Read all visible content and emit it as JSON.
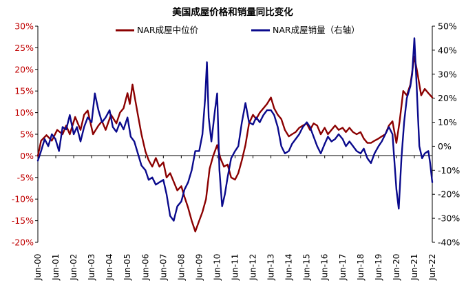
{
  "chart_data": {
    "type": "line",
    "title": "美国成屋价格和销量同比变化",
    "legend_position": "top",
    "grid": false,
    "y_left": {
      "min": -20,
      "max": 30,
      "step": 5,
      "suffix": "%",
      "color": "#C00000"
    },
    "y_right": {
      "min": -40,
      "max": 50,
      "step": 10,
      "suffix": "%",
      "color": "#000000"
    },
    "x_ticks": [
      "Jun-00",
      "Jun-01",
      "Jun-02",
      "Jun-03",
      "Jun-04",
      "Jun-05",
      "Jun-06",
      "Jun-07",
      "Jun-08",
      "Jun-09",
      "Jun-10",
      "Jun-11",
      "Jun-12",
      "Jun-13",
      "Jun-14",
      "Jun-15",
      "Jun-16",
      "Jun-17",
      "Jun-18",
      "Jun-19",
      "Jun-20",
      "Jun-21",
      "Jun-22"
    ],
    "x_range": [
      2000.42,
      2022.42
    ],
    "series": [
      {
        "name": "NAR成屋中位价",
        "axis": "left",
        "color": "#8B0000",
        "points": [
          [
            2000.42,
            0
          ],
          [
            2000.6,
            3.5
          ],
          [
            2000.9,
            4.8
          ],
          [
            2001.2,
            3.5
          ],
          [
            2001.5,
            6
          ],
          [
            2001.8,
            5
          ],
          [
            2002.0,
            7
          ],
          [
            2002.2,
            5
          ],
          [
            2002.5,
            9
          ],
          [
            2002.8,
            6
          ],
          [
            2003.0,
            9.5
          ],
          [
            2003.2,
            10.5
          ],
          [
            2003.5,
            5
          ],
          [
            2003.8,
            7
          ],
          [
            2004.0,
            8
          ],
          [
            2004.2,
            6
          ],
          [
            2004.5,
            9.5
          ],
          [
            2004.8,
            7.5
          ],
          [
            2005.0,
            10
          ],
          [
            2005.2,
            11
          ],
          [
            2005.42,
            14.5
          ],
          [
            2005.55,
            12
          ],
          [
            2005.7,
            16.5
          ],
          [
            2005.85,
            13
          ],
          [
            2006.0,
            9.5
          ],
          [
            2006.2,
            5
          ],
          [
            2006.42,
            1
          ],
          [
            2006.6,
            -1
          ],
          [
            2006.8,
            -2.5
          ],
          [
            2007.0,
            -0.5
          ],
          [
            2007.2,
            -2.5
          ],
          [
            2007.42,
            -1.5
          ],
          [
            2007.6,
            -5
          ],
          [
            2007.8,
            -4
          ],
          [
            2008.0,
            -6
          ],
          [
            2008.2,
            -8
          ],
          [
            2008.42,
            -7
          ],
          [
            2008.6,
            -9.5
          ],
          [
            2008.8,
            -12
          ],
          [
            2009.0,
            -15
          ],
          [
            2009.2,
            -17.5
          ],
          [
            2009.42,
            -15
          ],
          [
            2009.6,
            -13
          ],
          [
            2009.8,
            -10
          ],
          [
            2010.0,
            -3
          ],
          [
            2010.2,
            0
          ],
          [
            2010.42,
            2.5
          ],
          [
            2010.6,
            -0.5
          ],
          [
            2010.8,
            -2.5
          ],
          [
            2011.0,
            -2
          ],
          [
            2011.2,
            -5
          ],
          [
            2011.42,
            -5.5
          ],
          [
            2011.6,
            -4
          ],
          [
            2011.8,
            -1
          ],
          [
            2012.0,
            2.5
          ],
          [
            2012.2,
            7.5
          ],
          [
            2012.42,
            9.5
          ],
          [
            2012.6,
            8.5
          ],
          [
            2012.8,
            10
          ],
          [
            2013.0,
            11
          ],
          [
            2013.2,
            12
          ],
          [
            2013.42,
            13.5
          ],
          [
            2013.6,
            11
          ],
          [
            2013.8,
            9.5
          ],
          [
            2014.0,
            8.5
          ],
          [
            2014.2,
            6
          ],
          [
            2014.42,
            4.5
          ],
          [
            2014.6,
            5
          ],
          [
            2014.8,
            5.5
          ],
          [
            2015.0,
            6.5
          ],
          [
            2015.2,
            7
          ],
          [
            2015.42,
            7.5
          ],
          [
            2015.6,
            6
          ],
          [
            2015.8,
            7.5
          ],
          [
            2016.0,
            7
          ],
          [
            2016.2,
            5
          ],
          [
            2016.42,
            6.5
          ],
          [
            2016.6,
            5
          ],
          [
            2016.8,
            6
          ],
          [
            2017.0,
            7
          ],
          [
            2017.2,
            6
          ],
          [
            2017.42,
            6.5
          ],
          [
            2017.6,
            5.5
          ],
          [
            2017.8,
            6.5
          ],
          [
            2018.0,
            5.5
          ],
          [
            2018.2,
            5
          ],
          [
            2018.42,
            5.5
          ],
          [
            2018.6,
            4
          ],
          [
            2018.8,
            3
          ],
          [
            2019.0,
            3
          ],
          [
            2019.2,
            3.5
          ],
          [
            2019.42,
            4
          ],
          [
            2019.6,
            4.5
          ],
          [
            2019.8,
            5
          ],
          [
            2020.0,
            7
          ],
          [
            2020.2,
            8
          ],
          [
            2020.42,
            3
          ],
          [
            2020.6,
            8
          ],
          [
            2020.8,
            15
          ],
          [
            2021.0,
            14
          ],
          [
            2021.2,
            16.5
          ],
          [
            2021.42,
            23
          ],
          [
            2021.6,
            19
          ],
          [
            2021.8,
            14
          ],
          [
            2022.0,
            15.5
          ],
          [
            2022.2,
            14.5
          ],
          [
            2022.42,
            13.5
          ]
        ]
      },
      {
        "name": "NAR成屋销量（右轴）",
        "axis": "right",
        "color": "#0A0A8C",
        "points": [
          [
            2000.42,
            -6
          ],
          [
            2000.6,
            -2
          ],
          [
            2000.8,
            3
          ],
          [
            2001.0,
            0
          ],
          [
            2001.2,
            5
          ],
          [
            2001.4,
            3
          ],
          [
            2001.6,
            -2
          ],
          [
            2001.8,
            8
          ],
          [
            2002.0,
            7
          ],
          [
            2002.2,
            13
          ],
          [
            2002.42,
            5
          ],
          [
            2002.6,
            8
          ],
          [
            2002.8,
            2
          ],
          [
            2003.0,
            8
          ],
          [
            2003.2,
            12
          ],
          [
            2003.42,
            10
          ],
          [
            2003.6,
            22
          ],
          [
            2003.8,
            15
          ],
          [
            2004.0,
            10
          ],
          [
            2004.2,
            12
          ],
          [
            2004.42,
            15
          ],
          [
            2004.6,
            8
          ],
          [
            2004.8,
            6
          ],
          [
            2005.0,
            10
          ],
          [
            2005.2,
            7
          ],
          [
            2005.42,
            12
          ],
          [
            2005.6,
            4
          ],
          [
            2005.8,
            2
          ],
          [
            2006.0,
            -3
          ],
          [
            2006.2,
            -8
          ],
          [
            2006.42,
            -10
          ],
          [
            2006.6,
            -14
          ],
          [
            2006.8,
            -13
          ],
          [
            2007.0,
            -16
          ],
          [
            2007.2,
            -15
          ],
          [
            2007.42,
            -14
          ],
          [
            2007.6,
            -20
          ],
          [
            2007.8,
            -29
          ],
          [
            2008.0,
            -31
          ],
          [
            2008.2,
            -25
          ],
          [
            2008.42,
            -23
          ],
          [
            2008.6,
            -18
          ],
          [
            2008.8,
            -15
          ],
          [
            2009.0,
            -10
          ],
          [
            2009.2,
            -2
          ],
          [
            2009.42,
            -2
          ],
          [
            2009.6,
            5
          ],
          [
            2009.75,
            20
          ],
          [
            2009.85,
            35
          ],
          [
            2009.95,
            12
          ],
          [
            2010.1,
            2
          ],
          [
            2010.3,
            15
          ],
          [
            2010.42,
            22
          ],
          [
            2010.55,
            -10
          ],
          [
            2010.7,
            -25
          ],
          [
            2010.85,
            -20
          ],
          [
            2011.0,
            -13
          ],
          [
            2011.2,
            -5
          ],
          [
            2011.42,
            -2
          ],
          [
            2011.6,
            0
          ],
          [
            2011.8,
            10
          ],
          [
            2012.0,
            18
          ],
          [
            2012.2,
            10
          ],
          [
            2012.42,
            9
          ],
          [
            2012.6,
            12
          ],
          [
            2012.8,
            10
          ],
          [
            2013.0,
            13
          ],
          [
            2013.2,
            15
          ],
          [
            2013.42,
            15
          ],
          [
            2013.6,
            13
          ],
          [
            2013.8,
            8
          ],
          [
            2014.0,
            0
          ],
          [
            2014.2,
            -3
          ],
          [
            2014.42,
            -2
          ],
          [
            2014.6,
            1
          ],
          [
            2014.8,
            3
          ],
          [
            2015.0,
            5
          ],
          [
            2015.2,
            8
          ],
          [
            2015.42,
            10
          ],
          [
            2015.6,
            8
          ],
          [
            2015.8,
            4
          ],
          [
            2016.0,
            0
          ],
          [
            2016.2,
            -3
          ],
          [
            2016.42,
            1
          ],
          [
            2016.6,
            4
          ],
          [
            2016.8,
            2
          ],
          [
            2017.0,
            3
          ],
          [
            2017.2,
            5
          ],
          [
            2017.42,
            3
          ],
          [
            2017.6,
            0
          ],
          [
            2017.8,
            2
          ],
          [
            2018.0,
            0
          ],
          [
            2018.2,
            -2
          ],
          [
            2018.42,
            -3
          ],
          [
            2018.6,
            -1
          ],
          [
            2018.8,
            -5
          ],
          [
            2019.0,
            -7
          ],
          [
            2019.2,
            -3
          ],
          [
            2019.42,
            0
          ],
          [
            2019.6,
            2
          ],
          [
            2019.8,
            5
          ],
          [
            2020.0,
            8
          ],
          [
            2020.2,
            5
          ],
          [
            2020.42,
            -18
          ],
          [
            2020.55,
            -26
          ],
          [
            2020.7,
            -5
          ],
          [
            2020.85,
            10
          ],
          [
            2021.0,
            20
          ],
          [
            2021.2,
            25
          ],
          [
            2021.3,
            30
          ],
          [
            2021.42,
            45
          ],
          [
            2021.55,
            25
          ],
          [
            2021.7,
            0
          ],
          [
            2021.85,
            -5
          ],
          [
            2022.0,
            -3
          ],
          [
            2022.2,
            -2
          ],
          [
            2022.3,
            -7
          ],
          [
            2022.42,
            -15
          ]
        ]
      }
    ]
  }
}
